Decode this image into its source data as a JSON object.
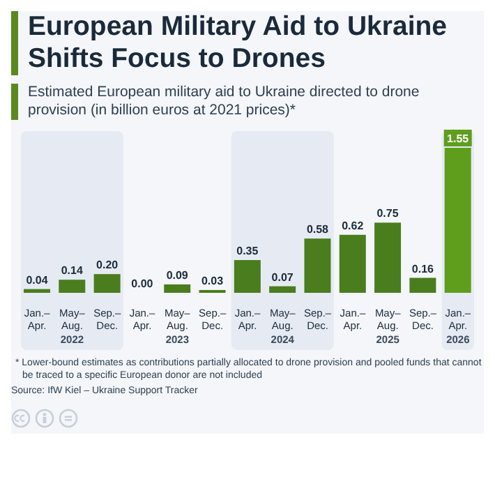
{
  "chart_data": {
    "type": "bar",
    "title": "European Military Aid to Ukraine Shifts Focus to Drones",
    "subtitle": "Estimated European military aid to Ukraine directed to drone provision (in billion euros at 2021 prices)*",
    "categories": [
      "Jan.–\nApr.",
      "May–\nAug.",
      "Sep.–\nDec.",
      "Jan.–\nApr.",
      "May–\nAug.",
      "Sep.–\nDec.",
      "Jan.–\nApr.",
      "May–\nAug.",
      "Sep.–\nDec.",
      "Jan.–\nApr.",
      "May–\nAug.",
      "Sep.–\nDec.",
      "Jan.–\nApr."
    ],
    "values": [
      0.04,
      0.14,
      0.2,
      0.0,
      0.09,
      0.03,
      0.35,
      0.07,
      0.58,
      0.62,
      0.75,
      0.16,
      1.55
    ],
    "colors": [
      "#4a7d1e",
      "#4a7d1e",
      "#4a7d1e",
      "#4a7d1e",
      "#4a7d1e",
      "#4a7d1e",
      "#4a7d1e",
      "#4a7d1e",
      "#4a7d1e",
      "#4a7d1e",
      "#4a7d1e",
      "#4a7d1e",
      "#5f9e1c"
    ],
    "value_labels": [
      "0.04",
      "0.14",
      "0.20",
      "0.00",
      "0.09",
      "0.03",
      "0.35",
      "0.07",
      "0.58",
      "0.62",
      "0.75",
      "0.16",
      "1.55"
    ],
    "annotations": [
      "2022",
      "2023",
      "2024",
      "2025",
      "2026",
      "* Lower-bound estimates as contributions partially allocated to drone provision and pooled funds that cannot be traced to a specific European donor are not included",
      "Source: IfW Kiel – Ukraine Support Tracker"
    ]
  }
}
